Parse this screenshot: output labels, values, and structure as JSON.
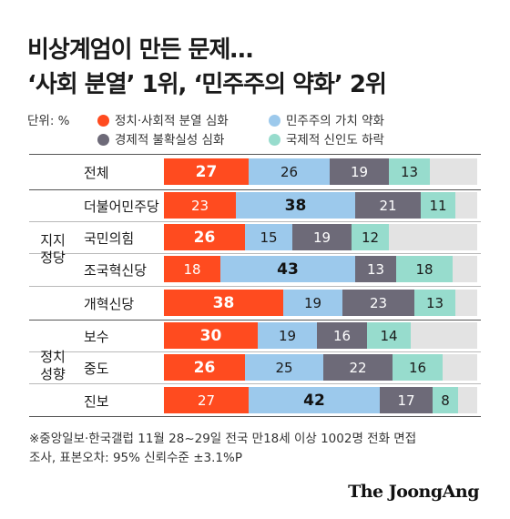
{
  "title_line1": "비상계엄이 만든 문제…",
  "title_line2": "‘사회 분열’ 1위, ‘민주주의 약화’ 2위",
  "unit": "단위: %",
  "colors": {
    "social_division": "#ff4b1f",
    "democracy_weakening": "#9cc9ec",
    "economic_uncertainty": "#6d6a78",
    "international_trust": "#97dccd",
    "remainder": "#e3e3e3"
  },
  "legend": [
    "정치·사회적 분열 심화",
    "민주주의 가치 약화",
    "경제적 불확실성 심화",
    "국제적 신인도 하락"
  ],
  "groups": [
    {
      "label_line1": "지지",
      "label_line2": "정당"
    },
    {
      "label_line1": "정치",
      "label_line2": "성향"
    }
  ],
  "chart_data": {
    "type": "bar",
    "orientation": "horizontal",
    "stacked": true,
    "unit": "%",
    "categories": [
      "전체",
      "더불어민주당",
      "국민의힘",
      "조국혁신당",
      "개혁신당",
      "보수",
      "중도",
      "진보"
    ],
    "series": [
      {
        "name": "정치·사회적 분열 심화",
        "values": [
          27,
          23,
          26,
          18,
          38,
          30,
          26,
          27
        ]
      },
      {
        "name": "민주주의 가치 약화",
        "values": [
          26,
          38,
          15,
          43,
          19,
          19,
          25,
          42
        ]
      },
      {
        "name": "경제적 불확실성 심화",
        "values": [
          19,
          21,
          19,
          13,
          23,
          16,
          22,
          17
        ]
      },
      {
        "name": "국제적 신인도 하락",
        "values": [
          13,
          11,
          12,
          18,
          13,
          14,
          16,
          8
        ]
      }
    ],
    "bold_series_per_row": [
      0,
      1,
      0,
      1,
      0,
      0,
      0,
      1
    ],
    "xlim": [
      0,
      100
    ],
    "grid": false,
    "legend_position": "top"
  },
  "note_line1": "※중앙일보·한국갤럽 11월 28~29일 전국 만18세 이상 1002명 전화 면접",
  "note_line2": "조사, 표본오차: 95% 신뢰수준 ±3.1%P",
  "brand": "The JoongAng"
}
